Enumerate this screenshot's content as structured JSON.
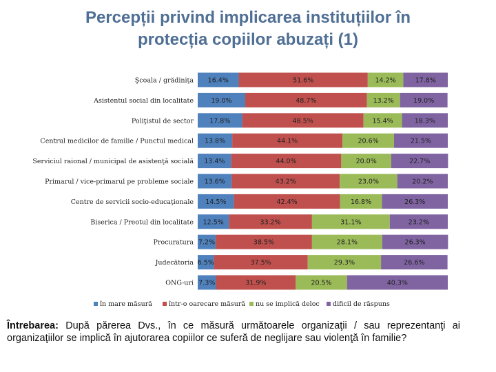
{
  "title_lines": [
    "Percepții privind implicarea instituțiilor în",
    "protecția copiilor abuzați (1)"
  ],
  "chart_data": {
    "type": "bar",
    "orientation": "horizontal",
    "stacked": "100%",
    "categories": [
      "Şcoala / grădiniţa",
      "Asistentul social din localitate",
      "Poliţistul de sector",
      "Centrul medicilor de familie / Punctul medical",
      "Serviciul raional / municipal de asistenţă socială",
      "Primarul / vice-primarul pe probleme sociale",
      "Centre de servicii socio-educaţionale",
      "Biserica / Preotul din localitate",
      "Procuratura",
      "Judecătoria",
      "ONG-uri"
    ],
    "series": [
      {
        "name": "în mare măsură",
        "color": "#4f81bd",
        "values": [
          16.4,
          19.0,
          17.8,
          13.8,
          13.4,
          13.6,
          14.5,
          12.5,
          7.2,
          6.5,
          7.3
        ]
      },
      {
        "name": "într-o oarecare măsură",
        "color": "#c0504d",
        "values": [
          51.6,
          48.7,
          48.5,
          44.1,
          44.0,
          43.2,
          42.4,
          33.2,
          38.5,
          37.5,
          31.9
        ]
      },
      {
        "name": "nu se implică deloc",
        "color": "#9bbb59",
        "values": [
          14.2,
          13.2,
          15.4,
          20.6,
          20.0,
          23.0,
          16.8,
          31.1,
          28.1,
          29.3,
          20.5
        ]
      },
      {
        "name": "dificil de răspuns",
        "color": "#8064a2",
        "values": [
          17.8,
          19.0,
          18.3,
          21.5,
          22.7,
          20.2,
          26.3,
          23.2,
          26.3,
          26.6,
          40.3
        ]
      }
    ],
    "labels": [
      [
        "16.4%",
        "51.6%",
        "14.2%",
        "17.8%"
      ],
      [
        "19.0%",
        "48.7%",
        "13.2%",
        "19.0%"
      ],
      [
        "17.8%",
        "48.5%",
        "15.4%",
        "18.3%"
      ],
      [
        "13.8%",
        "44.1%",
        "20.6%",
        "21.5%"
      ],
      [
        "13.4%",
        "44.0%",
        "20.0%",
        "22.7%"
      ],
      [
        "13.6%",
        "43.2%",
        "23.0%",
        "20.2%"
      ],
      [
        "14.5%",
        "42.4%",
        "16.8%",
        "26.3%"
      ],
      [
        "12.5%",
        "33.2%",
        "31.1%",
        "23.2%"
      ],
      [
        "7.2%",
        "38.5%",
        "28.1%",
        "26.3%"
      ],
      [
        "6.5%",
        "37.5%",
        "29.3%",
        "26.6%"
      ],
      [
        "7.3%",
        "31.9%",
        "20.5%",
        "40.3%"
      ]
    ],
    "xlim": [
      0,
      100
    ],
    "legend": "bottom"
  },
  "question": {
    "label": "Întrebarea:",
    "text": " După părerea Dvs., în ce măsură următoarele organizaţii / sau reprezentanţi ai organizaţiilor se implică în ajutorarea copiilor ce suferă de neglijare sau violenţă în familie?"
  }
}
